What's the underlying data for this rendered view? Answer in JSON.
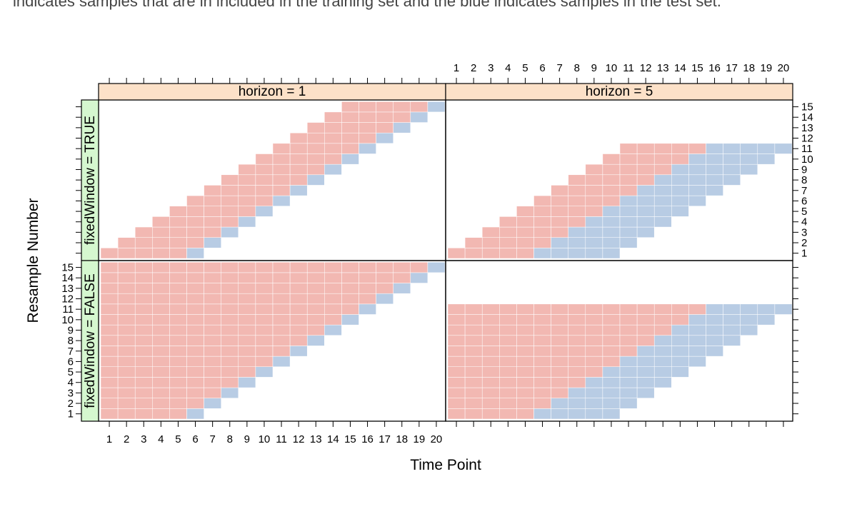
{
  "caption": "indicates samples that are in included in the training set and the blue indicates samples in the test set.",
  "colors": {
    "train": "#f2b8b2",
    "test": "#b8cce4",
    "strip_top": "#fce1c8",
    "strip_side": "#d5f7cf",
    "cell_grid": "#ffffff",
    "axis": "#000000"
  },
  "chart_data": {
    "type": "heatmap",
    "xlabel": "Time Point",
    "ylabel": "Resample Number",
    "xlim": [
      1,
      20
    ],
    "ylim": [
      1,
      15
    ],
    "x_ticks": [
      "1",
      "2",
      "3",
      "4",
      "5",
      "6",
      "7",
      "8",
      "9",
      "10",
      "11",
      "12",
      "13",
      "14",
      "15",
      "16",
      "17",
      "18",
      "19",
      "20"
    ],
    "y_ticks": [
      "1",
      "2",
      "3",
      "4",
      "5",
      "6",
      "7",
      "8",
      "9",
      "10",
      "11",
      "12",
      "13",
      "14",
      "15"
    ],
    "legend": [
      "training set",
      "test set"
    ],
    "panels": [
      {
        "column_strip": "horizon = 1",
        "row_strip": "fixedWindow = TRUE",
        "horizon": 1,
        "fixed_window": true,
        "resamples": 15,
        "train_start": [
          1,
          2,
          3,
          4,
          5,
          6,
          7,
          8,
          9,
          10,
          11,
          12,
          13,
          14,
          15
        ],
        "train_end": [
          5,
          6,
          7,
          8,
          9,
          10,
          11,
          12,
          13,
          14,
          15,
          16,
          17,
          18,
          19
        ],
        "test_start": [
          6,
          7,
          8,
          9,
          10,
          11,
          12,
          13,
          14,
          15,
          16,
          17,
          18,
          19,
          20
        ],
        "test_end": [
          6,
          7,
          8,
          9,
          10,
          11,
          12,
          13,
          14,
          15,
          16,
          17,
          18,
          19,
          20
        ]
      },
      {
        "column_strip": "horizon = 5",
        "row_strip": "fixedWindow = TRUE",
        "horizon": 5,
        "fixed_window": true,
        "resamples": 11,
        "train_start": [
          1,
          2,
          3,
          4,
          5,
          6,
          7,
          8,
          9,
          10,
          11
        ],
        "train_end": [
          5,
          6,
          7,
          8,
          9,
          10,
          11,
          12,
          13,
          14,
          15
        ],
        "test_start": [
          6,
          7,
          8,
          9,
          10,
          11,
          12,
          13,
          14,
          15,
          16
        ],
        "test_end": [
          10,
          11,
          12,
          13,
          14,
          15,
          16,
          17,
          18,
          19,
          20
        ]
      },
      {
        "column_strip": "horizon = 1",
        "row_strip": "fixedWindow = FALSE",
        "horizon": 1,
        "fixed_window": false,
        "resamples": 15,
        "train_start": [
          1,
          1,
          1,
          1,
          1,
          1,
          1,
          1,
          1,
          1,
          1,
          1,
          1,
          1,
          1
        ],
        "train_end": [
          5,
          6,
          7,
          8,
          9,
          10,
          11,
          12,
          13,
          14,
          15,
          16,
          17,
          18,
          19
        ],
        "test_start": [
          6,
          7,
          8,
          9,
          10,
          11,
          12,
          13,
          14,
          15,
          16,
          17,
          18,
          19,
          20
        ],
        "test_end": [
          6,
          7,
          8,
          9,
          10,
          11,
          12,
          13,
          14,
          15,
          16,
          17,
          18,
          19,
          20
        ]
      },
      {
        "column_strip": "horizon = 5",
        "row_strip": "fixedWindow = FALSE",
        "horizon": 5,
        "fixed_window": false,
        "resamples": 11,
        "train_start": [
          1,
          1,
          1,
          1,
          1,
          1,
          1,
          1,
          1,
          1,
          1
        ],
        "train_end": [
          5,
          6,
          7,
          8,
          9,
          10,
          11,
          12,
          13,
          14,
          15
        ],
        "test_start": [
          6,
          7,
          8,
          9,
          10,
          11,
          12,
          13,
          14,
          15,
          16
        ],
        "test_end": [
          10,
          11,
          12,
          13,
          14,
          15,
          16,
          17,
          18,
          19,
          20
        ]
      }
    ]
  }
}
